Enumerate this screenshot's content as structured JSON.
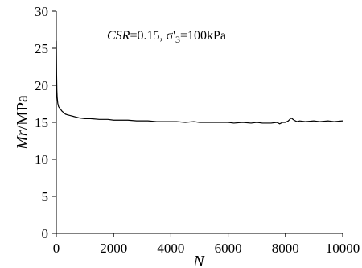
{
  "chart_data": {
    "type": "line",
    "title": "",
    "annotation": {
      "csr_symbol": "CSR",
      "csr_value": "=0.15, σ'",
      "subscript": "3",
      "pressure": "=100kPa"
    },
    "xlabel": "N",
    "ylabel_italic": "Mr",
    "ylabel_unit": "/MPa",
    "xlim": [
      0,
      10000
    ],
    "ylim": [
      0,
      30
    ],
    "x_ticks": [
      "0",
      "2000",
      "4000",
      "6000",
      "8000",
      "10000"
    ],
    "y_ticks": [
      "0",
      "5",
      "10",
      "15",
      "20",
      "25",
      "30"
    ],
    "grid": false,
    "legend": "none",
    "series": [
      {
        "color": "#000000",
        "x": [
          1,
          5,
          10,
          20,
          30,
          50,
          80,
          120,
          160,
          200,
          260,
          320,
          400,
          500,
          600,
          700,
          800,
          1000,
          1200,
          1500,
          1800,
          2000,
          2200,
          2500,
          2800,
          3000,
          3200,
          3500,
          3800,
          4000,
          4200,
          4500,
          4800,
          5000,
          5200,
          5500,
          5800,
          6000,
          6200,
          6500,
          6800,
          7000,
          7200,
          7500,
          7700,
          7800,
          7900,
          8000,
          8100,
          8200,
          8300,
          8400,
          8500,
          8700,
          9000,
          9200,
          9500,
          9700,
          10000
        ],
        "y": [
          26.0,
          24.0,
          21.5,
          19.3,
          18.4,
          17.6,
          17.1,
          16.9,
          16.7,
          16.5,
          16.3,
          16.1,
          16.0,
          15.9,
          15.8,
          15.7,
          15.6,
          15.5,
          15.5,
          15.4,
          15.4,
          15.3,
          15.3,
          15.3,
          15.2,
          15.2,
          15.2,
          15.1,
          15.1,
          15.1,
          15.1,
          15.0,
          15.1,
          15.0,
          15.0,
          15.0,
          15.0,
          15.0,
          14.9,
          15.0,
          14.9,
          15.0,
          14.9,
          14.9,
          15.0,
          14.8,
          15.0,
          15.0,
          15.2,
          15.6,
          15.3,
          15.1,
          15.2,
          15.1,
          15.2,
          15.1,
          15.2,
          15.1,
          15.2
        ]
      }
    ]
  }
}
